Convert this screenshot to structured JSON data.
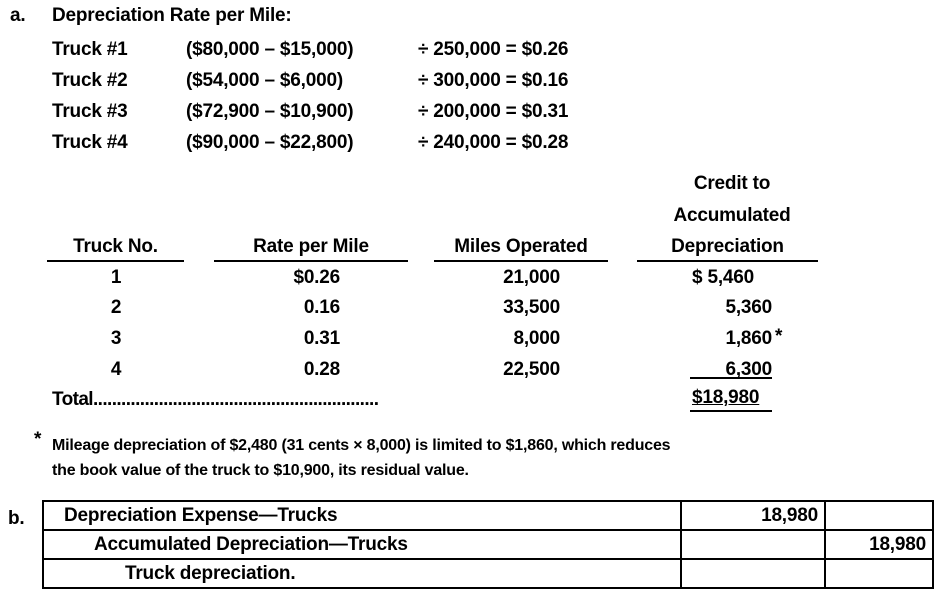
{
  "part_a": {
    "label": "a.",
    "title": "Depreciation Rate per Mile:",
    "rates": [
      {
        "truck": "Truck #1",
        "formula": "($80,000 – $15,000)",
        "result": "÷ 250,000 = $0.26"
      },
      {
        "truck": "Truck #2",
        "formula": "($54,000 – $6,000)",
        "result": "÷ 300,000 = $0.16"
      },
      {
        "truck": "Truck #3",
        "formula": "($72,900 – $10,900)",
        "result": "÷ 200,000 = $0.31"
      },
      {
        "truck": "Truck #4",
        "formula": "($90,000 – $22,800)",
        "result": "÷ 240,000 = $0.28"
      }
    ],
    "table": {
      "headers": [
        "Truck No.",
        "Rate per Mile",
        "Miles Operated",
        "Credit to",
        "Accumulated",
        "Depreciation"
      ],
      "rows": [
        {
          "no": "1",
          "rate": "$0.26",
          "miles": "21,000",
          "credit": "$ 5,460",
          "mark": ""
        },
        {
          "no": "2",
          "rate": "0.16",
          "miles": "33,500",
          "credit": "5,360",
          "mark": ""
        },
        {
          "no": "3",
          "rate": "0.31",
          "miles": "8,000",
          "credit": "1,860",
          "mark": "*"
        },
        {
          "no": "4",
          "rate": "0.28",
          "miles": "22,500",
          "credit": "6,300",
          "mark": ""
        }
      ],
      "total_label": "Total.............................................................",
      "total_value": "$18,980"
    },
    "footnote": {
      "mark": "*",
      "line1": "Mileage depreciation of $2,480 (31 cents × 8,000) is limited to $1,860, which reduces",
      "line2": "the book value of the truck to $10,900, its residual value."
    }
  },
  "part_b": {
    "label": "b.",
    "entries": [
      {
        "account": "Depreciation Expense—Trucks",
        "debit": "18,980",
        "credit": ""
      },
      {
        "account": "Accumulated Depreciation—Trucks",
        "debit": "",
        "credit": "18,980"
      },
      {
        "account": "Truck depreciation.",
        "debit": "",
        "credit": ""
      }
    ]
  }
}
